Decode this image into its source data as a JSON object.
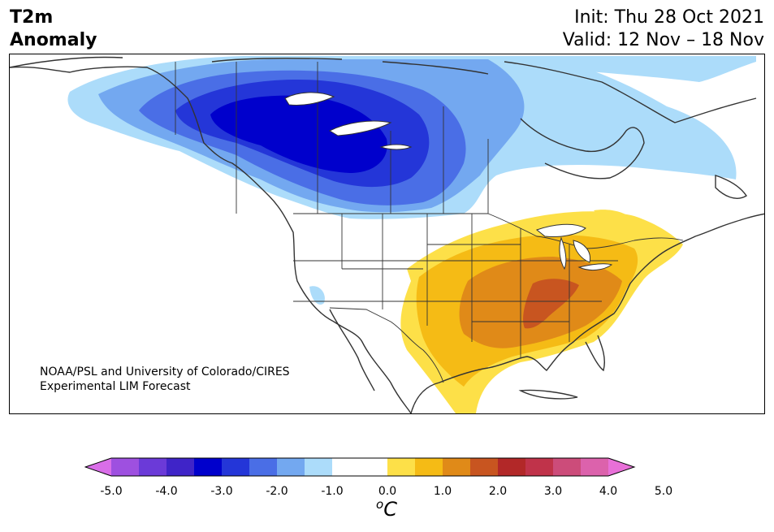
{
  "title": {
    "line1": "T2m",
    "line2": "Anomaly"
  },
  "init_text": "Init: Thu 28 Oct 2021",
  "valid_text": "Valid: 12 Nov – 18 Nov",
  "credit": {
    "line1": "NOAA/PSL and University of Colorado/CIRES",
    "line2": "Experimental LIM Forecast"
  },
  "colorbar": {
    "unit_base": "C",
    "unit_sup": "o",
    "ticks": [
      "-5.0",
      "-4.0",
      "-3.0",
      "-2.0",
      "-1.0",
      "0.0",
      "1.0",
      "2.0",
      "3.0",
      "4.0",
      "5.0"
    ],
    "colors": [
      "#d96ee8",
      "#9e50e0",
      "#6b3ad8",
      "#3f24c8",
      "#0000cc",
      "#2436d8",
      "#4a6ee6",
      "#73a8f0",
      "#acdcfa",
      "#ffffff",
      "#ffffff",
      "#fde048",
      "#f5bb15",
      "#e08a18",
      "#c85520",
      "#b22828",
      "#c0334a",
      "#cc4c7a",
      "#dc62ac",
      "#e870d8"
    ]
  },
  "anomaly_levels": {
    "cold": [
      "#acdcfa",
      "#73a8f0",
      "#4a6ee6",
      "#2436d8",
      "#0000cc"
    ],
    "warm": [
      "#fde048",
      "#f5bb15",
      "#e08a18",
      "#c85520"
    ]
  }
}
